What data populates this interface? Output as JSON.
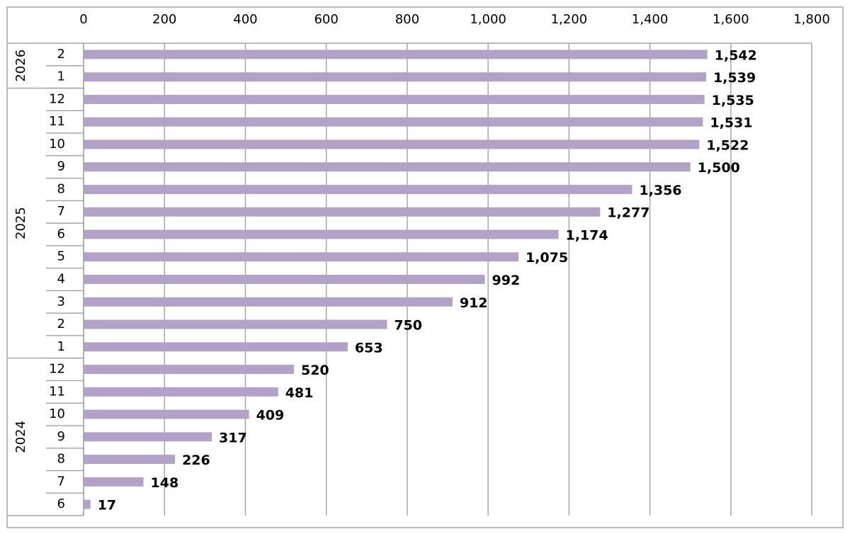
{
  "chart_data": {
    "type": "bar",
    "orientation": "horizontal",
    "color": "#b3a2c7",
    "grid": true,
    "xlim": [
      0,
      1800
    ],
    "xticks": [
      0,
      200,
      400,
      600,
      800,
      {
        "value": 1000,
        "label": "1,000"
      },
      {
        "value": 1200,
        "label": "1,200"
      },
      {
        "value": 1400,
        "label": "1,400"
      },
      {
        "value": 1600,
        "label": "1,600"
      },
      {
        "value": 1800,
        "label": "1,800"
      }
    ],
    "groups": [
      {
        "name": "2026",
        "categories": [
          "2",
          "1"
        ],
        "values": [
          1542,
          1539
        ],
        "value_labels": [
          "1,542",
          "1,539"
        ]
      },
      {
        "name": "2025",
        "categories": [
          "12",
          "11",
          "10",
          "9",
          "8",
          "7",
          "6",
          "5",
          "4",
          "3",
          "2",
          "1"
        ],
        "values": [
          1535,
          1531,
          1522,
          1500,
          1356,
          1277,
          1174,
          1075,
          992,
          912,
          750,
          653
        ],
        "value_labels": [
          "1,535",
          "1,531",
          "1,522",
          "1,500",
          "1,356",
          "1,277",
          "1,174",
          "1,075",
          "992",
          "912",
          "750",
          "653"
        ]
      },
      {
        "name": "2024",
        "categories": [
          "12",
          "11",
          "10",
          "9",
          "8",
          "7",
          "6"
        ],
        "values": [
          520,
          481,
          409,
          317,
          226,
          148,
          17
        ],
        "value_labels": [
          "520",
          "481",
          "409",
          "317",
          "226",
          "148",
          "17"
        ]
      }
    ]
  }
}
